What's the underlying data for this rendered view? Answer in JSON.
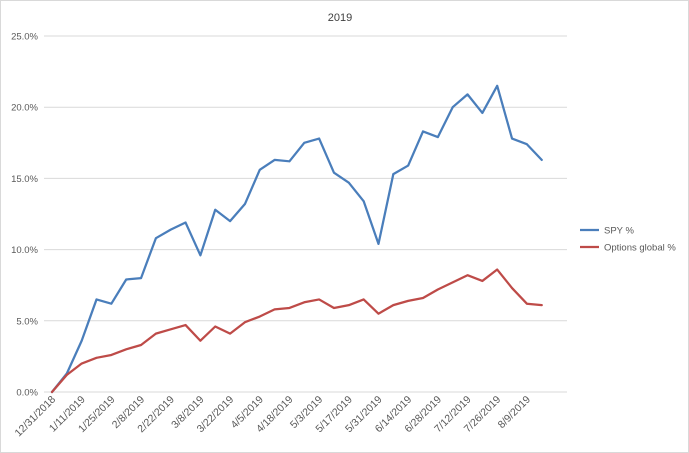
{
  "chart_data": {
    "type": "line",
    "title": "2019",
    "xlabel": "",
    "ylabel": "",
    "ylim": [
      0,
      25
    ],
    "y_ticks": [
      "0.0%",
      "5.0%",
      "10.0%",
      "15.0%",
      "20.0%",
      "25.0%"
    ],
    "y_tick_values": [
      0,
      5,
      10,
      15,
      20,
      25
    ],
    "gridlines": "horizontal",
    "legend_position": "right",
    "x": [
      "12/31/2018",
      "1/4/2019",
      "1/11/2019",
      "1/18/2019",
      "1/25/2019",
      "2/1/2019",
      "2/8/2019",
      "2/15/2019",
      "2/22/2019",
      "3/1/2019",
      "3/8/2019",
      "3/15/2019",
      "3/22/2019",
      "3/29/2019",
      "4/5/2019",
      "4/12/2019",
      "4/18/2019",
      "4/26/2019",
      "5/3/2019",
      "5/10/2019",
      "5/17/2019",
      "5/24/2019",
      "5/31/2019",
      "6/7/2019",
      "6/14/2019",
      "6/21/2019",
      "6/28/2019",
      "7/5/2019",
      "7/12/2019",
      "7/19/2019",
      "7/26/2019",
      "8/2/2019",
      "8/9/2019",
      "8/16/2019"
    ],
    "x_tick_labels": [
      "12/31/2018",
      "1/11/2019",
      "1/25/2019",
      "2/8/2019",
      "2/22/2019",
      "3/8/2019",
      "3/22/2019",
      "4/5/2019",
      "4/18/2019",
      "5/3/2019",
      "5/17/2019",
      "5/31/2019",
      "6/14/2019",
      "6/28/2019",
      "7/12/2019",
      "7/26/2019",
      "8/9/2019"
    ],
    "series": [
      {
        "name": "SPY %",
        "color": "#4a7ebb",
        "values": [
          0.0,
          1.3,
          3.6,
          6.5,
          6.2,
          7.9,
          8.0,
          10.8,
          11.4,
          11.9,
          9.6,
          12.8,
          12.0,
          13.2,
          15.6,
          16.3,
          16.2,
          17.5,
          17.8,
          15.4,
          14.7,
          13.4,
          10.4,
          15.3,
          15.9,
          18.3,
          17.9,
          20.0,
          20.9,
          19.6,
          21.5,
          17.8,
          17.4,
          16.3
        ]
      },
      {
        "name": "Options global %",
        "color": "#be4b48",
        "values": [
          0.0,
          1.2,
          2.0,
          2.4,
          2.6,
          3.0,
          3.3,
          4.1,
          4.4,
          4.7,
          3.6,
          4.6,
          4.1,
          4.9,
          5.3,
          5.8,
          5.9,
          6.3,
          6.5,
          5.9,
          6.1,
          6.5,
          5.5,
          6.1,
          6.4,
          6.6,
          7.2,
          7.7,
          8.2,
          7.8,
          8.6,
          7.3,
          6.2,
          6.1
        ]
      }
    ]
  }
}
